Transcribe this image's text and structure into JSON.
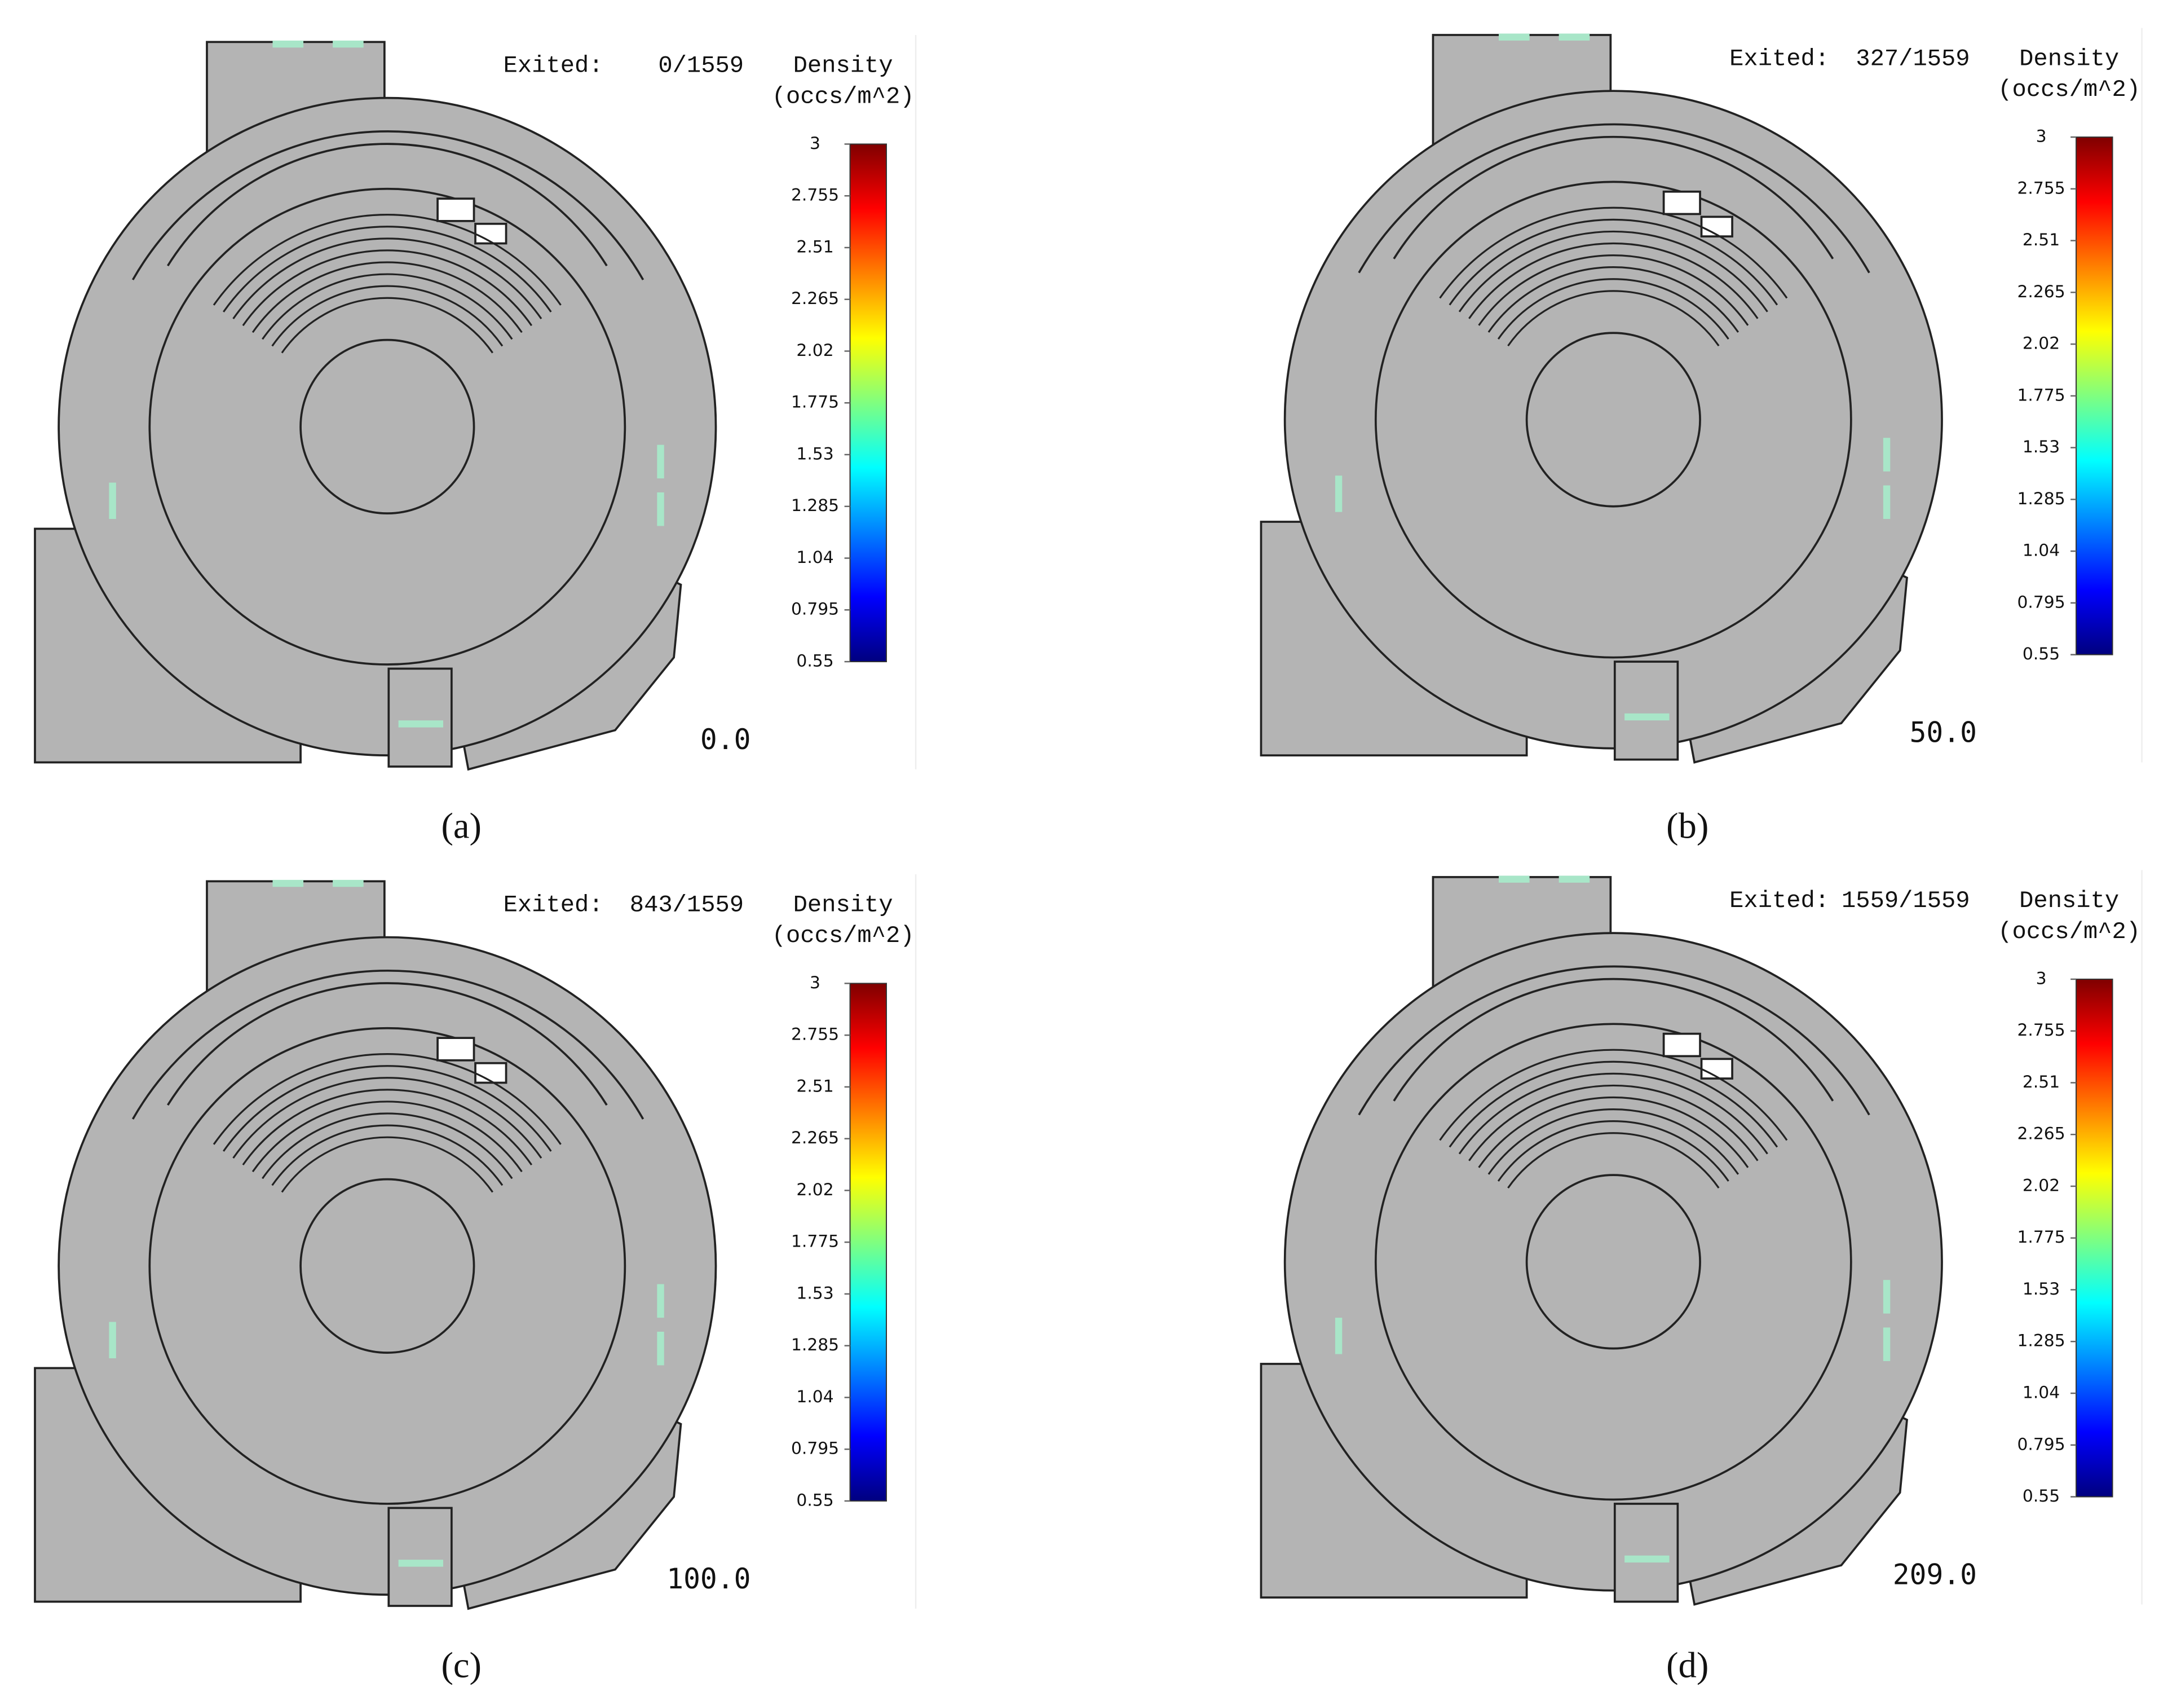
{
  "exited_label": "Exited:",
  "colorbar": {
    "title": "Density",
    "unit": "(occs/m^2)",
    "ticks": [
      3,
      2.755,
      2.51,
      2.265,
      2.02,
      1.775,
      1.53,
      1.285,
      1.04,
      0.795,
      0.55
    ]
  },
  "panels": [
    {
      "exited": "0/1559",
      "time": "0.0",
      "label": "(a)"
    },
    {
      "exited": "327/1559",
      "time": "50.0",
      "label": "(b)"
    },
    {
      "exited": "843/1559",
      "time": "100.0",
      "label": "(c)"
    },
    {
      "exited": "1559/1559",
      "time": "209.0",
      "label": "(d)"
    }
  ]
}
